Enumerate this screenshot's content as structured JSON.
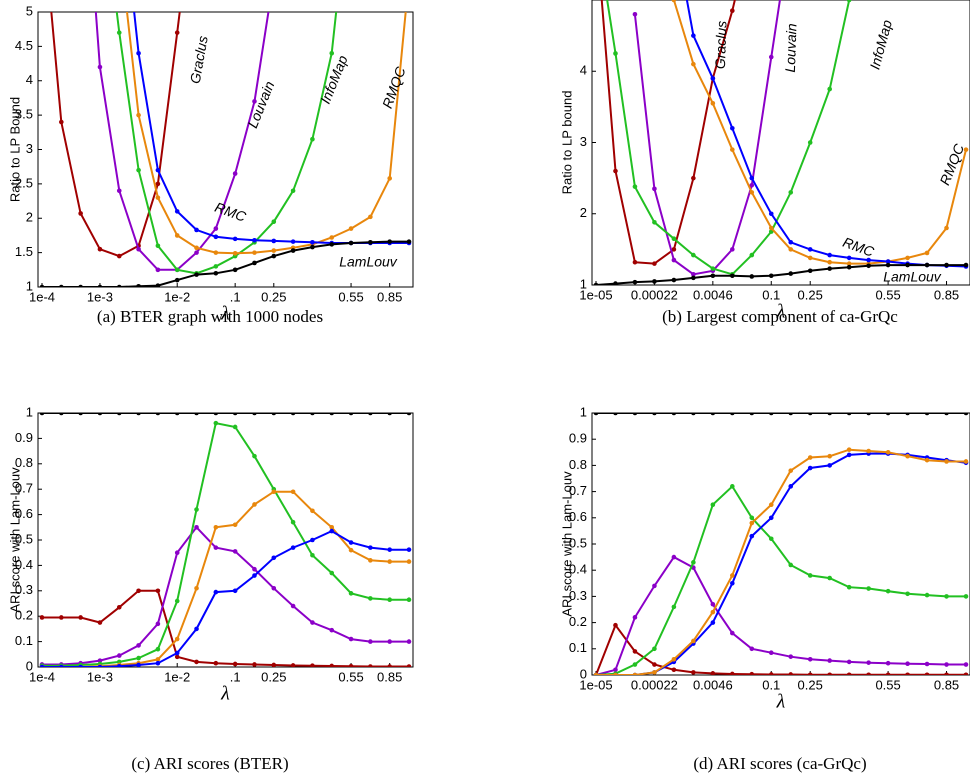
{
  "chart_data": [
    {
      "type": "line",
      "caption": "(a) BTER graph with 1000 nodes",
      "y_label": "Ratio to LP Bound",
      "x_label": "λ",
      "categories": [
        "1e-4",
        null,
        null,
        "1e-3",
        null,
        null,
        null,
        "1e-2",
        null,
        null,
        ".1",
        null,
        "0.25",
        null,
        null,
        null,
        "0.55",
        null,
        "0.85",
        null
      ],
      "ylim": [
        1,
        5
      ],
      "yticks": [
        1,
        1.5,
        2,
        2.5,
        3,
        3.5,
        4,
        4.5,
        5
      ],
      "series": [
        {
          "name": "Graclus",
          "color": "#a00000",
          "values": [
            6.5,
            3.4,
            2.07,
            1.55,
            1.45,
            1.6,
            2.5,
            4.7,
            7,
            null,
            null,
            null,
            null,
            null,
            null,
            null,
            null,
            null,
            null,
            null
          ]
        },
        {
          "name": "Louvain",
          "color": "#8b00c8",
          "values": [
            null,
            null,
            8,
            4.2,
            2.4,
            1.55,
            1.25,
            1.25,
            1.5,
            1.85,
            2.65,
            3.7,
            5.5,
            null,
            null,
            null,
            null,
            null,
            null,
            null
          ]
        },
        {
          "name": "InfoMap",
          "color": "#22c022",
          "values": [
            null,
            null,
            null,
            7,
            4.7,
            2.7,
            1.6,
            1.25,
            1.2,
            1.3,
            1.45,
            1.65,
            1.95,
            2.4,
            3.15,
            4.4,
            7,
            null,
            null,
            null
          ]
        },
        {
          "name": "RMQC",
          "color": "#e8870c",
          "values": [
            null,
            null,
            null,
            null,
            6,
            3.5,
            2.3,
            1.75,
            1.57,
            1.5,
            1.49,
            1.5,
            1.53,
            1.57,
            1.62,
            1.72,
            1.85,
            2.02,
            2.58,
            5.5
          ]
        },
        {
          "name": "RMC",
          "color": "#0000ff",
          "values": [
            null,
            null,
            null,
            null,
            7,
            4.4,
            2.7,
            2.1,
            1.83,
            1.73,
            1.7,
            1.68,
            1.67,
            1.66,
            1.65,
            1.64,
            1.64,
            1.64,
            1.64,
            1.64
          ]
        },
        {
          "name": "LamLouv",
          "color": "#000000",
          "values": [
            1,
            1,
            1,
            1,
            1,
            1.01,
            1.02,
            1.1,
            1.18,
            1.2,
            1.25,
            1.35,
            1.45,
            1.53,
            1.58,
            1.62,
            1.64,
            1.65,
            1.66,
            1.66
          ]
        }
      ]
    },
    {
      "type": "line",
      "caption": "(b) Largest component of ca-GrQc",
      "y_label": "Ratio to LP bound",
      "x_label": "λ",
      "categories": [
        "1e-05",
        null,
        null,
        "0.00022",
        null,
        null,
        "0.0046",
        null,
        null,
        "0.1",
        null,
        "0.25",
        null,
        null,
        null,
        "0.55",
        null,
        null,
        "0.85",
        null
      ],
      "ylim": [
        1,
        5
      ],
      "yticks": [
        1,
        2,
        3,
        4
      ],
      "series": [
        {
          "name": "Graclus",
          "color": "#a00000",
          "values": [
            6,
            2.6,
            1.32,
            1.3,
            1.5,
            2.5,
            3.9,
            4.85,
            6,
            null,
            null,
            null,
            null,
            null,
            null,
            null,
            null,
            null,
            null,
            null
          ]
        },
        {
          "name": "Louvain",
          "color": "#8b00c8",
          "values": [
            null,
            null,
            4.8,
            2.35,
            1.35,
            1.15,
            1.2,
            1.5,
            2.4,
            4.2,
            6,
            null,
            null,
            null,
            null,
            null,
            null,
            null,
            null,
            null
          ]
        },
        {
          "name": "InfoMap",
          "color": "#22c022",
          "values": [
            6,
            4.25,
            2.38,
            1.88,
            1.65,
            1.42,
            1.23,
            1.15,
            1.42,
            1.75,
            2.3,
            3,
            3.75,
            5,
            null,
            null,
            null,
            null,
            null,
            null
          ]
        },
        {
          "name": "RMQC",
          "color": "#e8870c",
          "values": [
            null,
            null,
            null,
            null,
            5,
            4.1,
            3.55,
            2.9,
            2.3,
            1.8,
            1.5,
            1.38,
            1.32,
            1.3,
            1.3,
            1.33,
            1.38,
            1.45,
            1.8,
            2.9
          ]
        },
        {
          "name": "RMC",
          "color": "#0000ff",
          "values": [
            null,
            null,
            null,
            null,
            6,
            4.5,
            3.9,
            3.2,
            2.5,
            2,
            1.6,
            1.5,
            1.42,
            1.38,
            1.35,
            1.33,
            1.3,
            1.28,
            1.27,
            1.26
          ]
        },
        {
          "name": "LamLouv",
          "color": "#000000",
          "values": [
            1,
            1.02,
            1.04,
            1.05,
            1.07,
            1.1,
            1.13,
            1.13,
            1.12,
            1.13,
            1.16,
            1.2,
            1.23,
            1.25,
            1.27,
            1.28,
            1.28,
            1.28,
            1.28,
            1.28
          ]
        }
      ]
    },
    {
      "type": "line",
      "caption": "(c) ARI scores (BTER)",
      "y_label": "ARI score with Lam-Louv",
      "x_label": "λ",
      "categories": [
        "1e-4",
        null,
        null,
        "1e-3",
        null,
        null,
        null,
        "1e-2",
        null,
        null,
        ".1",
        null,
        "0.25",
        null,
        null,
        null,
        "0.55",
        null,
        "0.85",
        null
      ],
      "ylim": [
        0,
        1
      ],
      "yticks": [
        0,
        0.1,
        0.2,
        0.3,
        0.4,
        0.5,
        0.6,
        0.7,
        0.8,
        0.9,
        1
      ],
      "series": [
        {
          "color": "#000000",
          "values": [
            1,
            1,
            1,
            1,
            1,
            1,
            1,
            1,
            1,
            1,
            1,
            1,
            1,
            1,
            1,
            1,
            1,
            1,
            1,
            1
          ]
        },
        {
          "color": "#a00000",
          "values": [
            0.195,
            0.195,
            0.195,
            0.175,
            0.235,
            0.3,
            0.3,
            0.04,
            0.02,
            0.015,
            0.012,
            0.01,
            0.008,
            0.006,
            0.005,
            0.004,
            0.003,
            0.002,
            0.002,
            0.002
          ]
        },
        {
          "color": "#8b00c8",
          "values": [
            0.01,
            0.01,
            0.015,
            0.025,
            0.045,
            0.085,
            0.17,
            0.45,
            0.55,
            0.47,
            0.455,
            0.385,
            0.31,
            0.24,
            0.175,
            0.145,
            0.11,
            0.1,
            0.1,
            0.1
          ]
        },
        {
          "color": "#22c022",
          "values": [
            0.005,
            0.005,
            0.008,
            0.012,
            0.02,
            0.035,
            0.07,
            0.26,
            0.62,
            0.96,
            0.945,
            0.83,
            0.7,
            0.57,
            0.44,
            0.37,
            0.29,
            0.27,
            0.265,
            0.265
          ]
        },
        {
          "color": "#e8870c",
          "values": [
            0,
            0,
            0,
            0.003,
            0.008,
            0.015,
            0.03,
            0.11,
            0.31,
            0.55,
            0.56,
            0.64,
            0.69,
            0.69,
            0.615,
            0.55,
            0.46,
            0.42,
            0.415,
            0.415
          ]
        },
        {
          "color": "#0000ff",
          "values": [
            0,
            0,
            0,
            0,
            0.003,
            0.008,
            0.015,
            0.055,
            0.15,
            0.295,
            0.3,
            0.36,
            0.43,
            0.47,
            0.5,
            0.535,
            0.49,
            0.47,
            0.462,
            0.462
          ]
        }
      ]
    },
    {
      "type": "line",
      "caption": "(d) ARI scores (ca-GrQc)",
      "y_label": "ARI score with Lam-Louv",
      "x_label": "λ",
      "categories": [
        "1e-05",
        null,
        null,
        "0.00022",
        null,
        null,
        "0.0046",
        null,
        null,
        "0.1",
        null,
        "0.25",
        null,
        null,
        null,
        "0.55",
        null,
        null,
        "0.85",
        null
      ],
      "ylim": [
        0,
        1
      ],
      "yticks": [
        0,
        0.1,
        0.2,
        0.3,
        0.4,
        0.5,
        0.6,
        0.7,
        0.8,
        0.9,
        1
      ],
      "series": [
        {
          "color": "#000000",
          "values": [
            1,
            1,
            1,
            1,
            1,
            1,
            1,
            1,
            1,
            1,
            1,
            1,
            1,
            1,
            1,
            1,
            1,
            1,
            1,
            1
          ]
        },
        {
          "color": "#a00000",
          "values": [
            0,
            0.19,
            0.09,
            0.04,
            0.02,
            0.01,
            0.006,
            0.004,
            0.003,
            0.002,
            0.002,
            0.001,
            0.001,
            0.001,
            0.001,
            0.001,
            0.001,
            0.001,
            0.001,
            0.001
          ]
        },
        {
          "color": "#8b00c8",
          "values": [
            0,
            0.02,
            0.22,
            0.34,
            0.45,
            0.41,
            0.27,
            0.16,
            0.1,
            0.085,
            0.07,
            0.06,
            0.055,
            0.05,
            0.047,
            0.045,
            0.043,
            0.042,
            0.04,
            0.04
          ]
        },
        {
          "color": "#22c022",
          "values": [
            0,
            0.005,
            0.04,
            0.1,
            0.26,
            0.43,
            0.65,
            0.72,
            0.6,
            0.52,
            0.42,
            0.38,
            0.37,
            0.335,
            0.33,
            0.32,
            0.31,
            0.305,
            0.3,
            0.3
          ]
        },
        {
          "color": "#0000ff",
          "values": [
            0,
            0,
            0,
            0.01,
            0.05,
            0.12,
            0.2,
            0.35,
            0.53,
            0.6,
            0.72,
            0.79,
            0.8,
            0.84,
            0.845,
            0.845,
            0.84,
            0.83,
            0.82,
            0.81
          ]
        },
        {
          "color": "#e8870c",
          "values": [
            0,
            0,
            0,
            0.01,
            0.06,
            0.13,
            0.24,
            0.38,
            0.58,
            0.65,
            0.78,
            0.83,
            0.835,
            0.86,
            0.855,
            0.85,
            0.835,
            0.82,
            0.815,
            0.815
          ]
        }
      ]
    }
  ]
}
